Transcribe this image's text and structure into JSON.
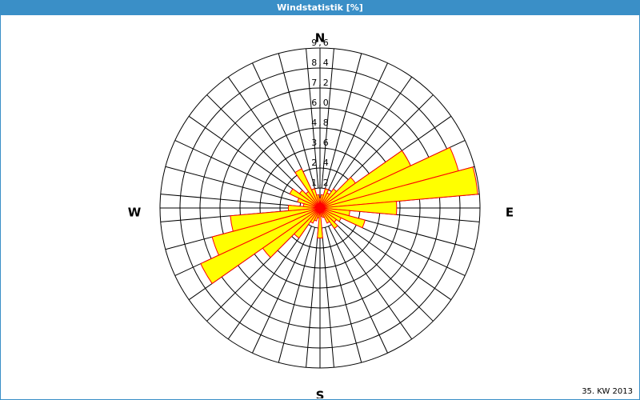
{
  "chart_data": {
    "type": "windrose",
    "title": "Windstatistik [%]",
    "footer": "35. KW 2013",
    "compass_labels": [
      "N",
      "E",
      "S",
      "W"
    ],
    "values": [
      0.6,
      0.8,
      1.2,
      1.0,
      1.4,
      2.6,
      6.0,
      8.6,
      9.5,
      4.6,
      1.8,
      2.8,
      1.4,
      1.2,
      1.5,
      1.0,
      0.6,
      0.5,
      1.8,
      0.6,
      0.8,
      1.0,
      2.2,
      4.2,
      7.9,
      6.7,
      5.4,
      1.9,
      1.0,
      1.4,
      2.0,
      1.5,
      1.2,
      2.6,
      1.2,
      0.8
    ],
    "color": "#ffff00",
    "edge_color": "#ff0000",
    "rlim": [
      0,
      9.6
    ],
    "rticks": [
      {
        "value": 1.2,
        "label": "1,2"
      },
      {
        "value": 2.4,
        "label": "2,4"
      },
      {
        "value": 3.6,
        "label": "3,6"
      },
      {
        "value": 4.8,
        "label": "4,8"
      },
      {
        "value": 6.0,
        "label": "6,0"
      },
      {
        "value": 7.2,
        "label": "7,2"
      },
      {
        "value": 8.4,
        "label": "8,4"
      },
      {
        "value": 9.6,
        "label": "9,6"
      }
    ],
    "grid": true
  }
}
